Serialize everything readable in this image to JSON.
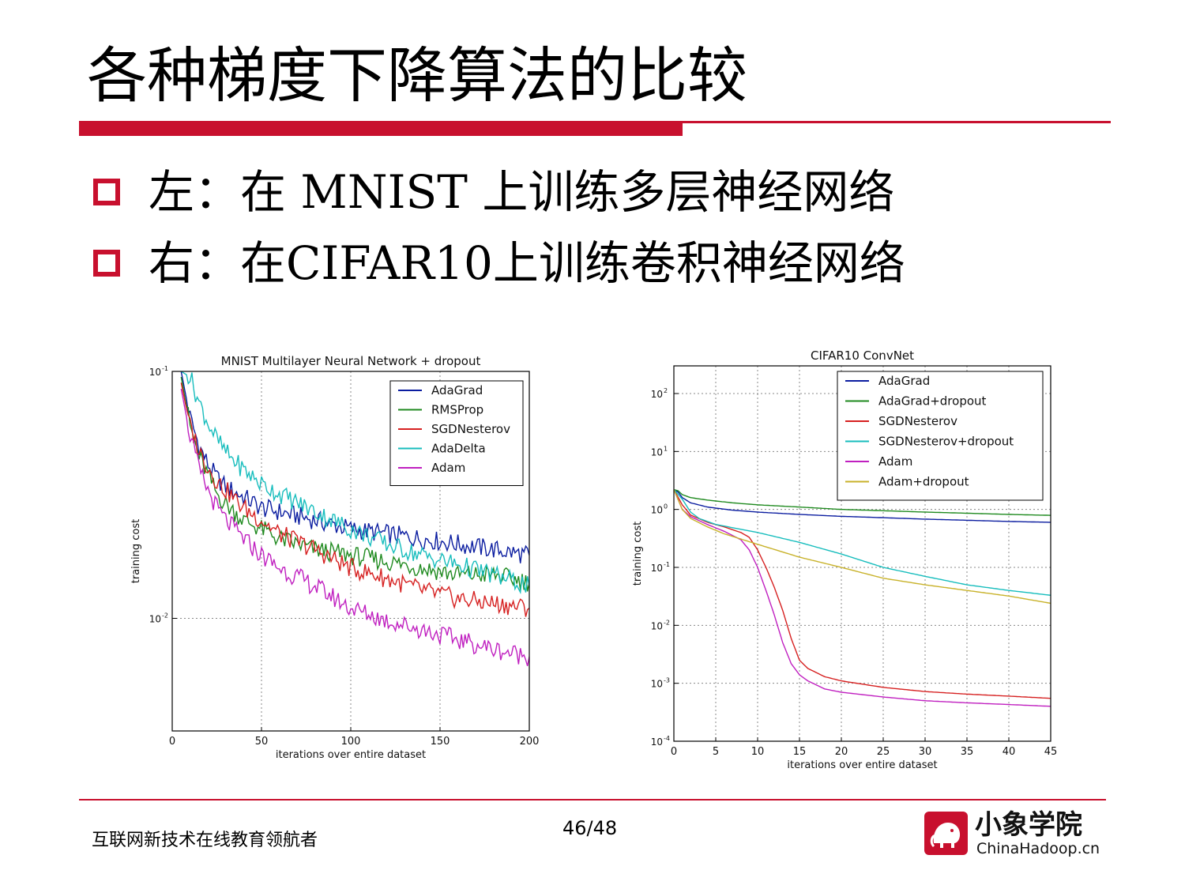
{
  "slide": {
    "title": "各种梯度下降算法的比较",
    "bullets": [
      "左：在 MNIST 上训练多层神经网络",
      "右：在CIFAR10上训练卷积神经网络"
    ],
    "footer_text": "互联网新技术在线教育领航者",
    "page_number": "46/48",
    "logo_cn": "小象学院",
    "logo_en": "ChinaHadoop.cn",
    "accent_color": "#c8102e"
  },
  "chart_data": [
    {
      "type": "line",
      "title": "MNIST Multilayer Neural Network + dropout",
      "xlabel": "iterations over entire dataset",
      "ylabel": "training cost",
      "xlim": [
        0,
        200
      ],
      "ylim": [
        0.0035,
        0.1
      ],
      "yscale": "log",
      "grid": true,
      "legend_position": "top-right",
      "x_ticks": [
        {
          "value": 0,
          "label": "0"
        },
        {
          "value": 50,
          "label": "50"
        },
        {
          "value": 100,
          "label": "100"
        },
        {
          "value": 150,
          "label": "150"
        },
        {
          "value": 200,
          "label": "200"
        }
      ],
      "y_ticks": [
        {
          "value": 0.1,
          "label": "10",
          "exp": "-1"
        },
        {
          "value": 0.01,
          "label": "10",
          "exp": "-2"
        }
      ],
      "series": [
        {
          "name": "AdaGrad",
          "color": "#0b1da0",
          "x": [
            5,
            10,
            15,
            20,
            25,
            30,
            40,
            50,
            60,
            80,
            100,
            120,
            140,
            160,
            180,
            200
          ],
          "y": [
            0.1,
            0.065,
            0.05,
            0.042,
            0.037,
            0.034,
            0.031,
            0.028,
            0.027,
            0.025,
            0.023,
            0.022,
            0.021,
            0.02,
            0.019,
            0.018
          ]
        },
        {
          "name": "RMSProp",
          "color": "#1f8a1f",
          "x": [
            5,
            10,
            15,
            20,
            25,
            30,
            40,
            50,
            60,
            80,
            100,
            120,
            140,
            160,
            180,
            200
          ],
          "y": [
            0.095,
            0.06,
            0.045,
            0.038,
            0.032,
            0.029,
            0.025,
            0.023,
            0.021,
            0.019,
            0.018,
            0.017,
            0.016,
            0.015,
            0.015,
            0.014
          ]
        },
        {
          "name": "SGDNesterov",
          "color": "#d62020",
          "x": [
            5,
            10,
            15,
            20,
            25,
            30,
            40,
            50,
            60,
            80,
            100,
            120,
            140,
            160,
            180,
            200
          ],
          "y": [
            0.09,
            0.06,
            0.048,
            0.041,
            0.036,
            0.033,
            0.028,
            0.025,
            0.022,
            0.019,
            0.016,
            0.0145,
            0.013,
            0.012,
            0.0115,
            0.011
          ]
        },
        {
          "name": "AdaDelta",
          "color": "#17bdbd",
          "x": [
            5,
            10,
            15,
            20,
            25,
            30,
            40,
            50,
            60,
            80,
            100,
            120,
            140,
            160,
            180,
            200
          ],
          "y": [
            0.1,
            0.095,
            0.075,
            0.062,
            0.053,
            0.047,
            0.04,
            0.035,
            0.032,
            0.027,
            0.023,
            0.02,
            0.018,
            0.0165,
            0.015,
            0.0135
          ]
        },
        {
          "name": "Adam",
          "color": "#c020c0",
          "x": [
            5,
            10,
            15,
            20,
            25,
            30,
            40,
            50,
            60,
            80,
            100,
            120,
            140,
            160,
            180,
            200
          ],
          "y": [
            0.085,
            0.055,
            0.04,
            0.033,
            0.028,
            0.025,
            0.021,
            0.018,
            0.016,
            0.0135,
            0.011,
            0.0098,
            0.009,
            0.0082,
            0.0075,
            0.007
          ]
        }
      ]
    },
    {
      "type": "line",
      "title": "CIFAR10 ConvNet",
      "xlabel": "iterations over entire dataset",
      "ylabel": "training cost",
      "xlim": [
        0,
        45
      ],
      "ylim": [
        0.0001,
        300
      ],
      "yscale": "log",
      "grid": true,
      "legend_position": "top-right",
      "x_ticks": [
        {
          "value": 0,
          "label": "0"
        },
        {
          "value": 5,
          "label": "5"
        },
        {
          "value": 10,
          "label": "10"
        },
        {
          "value": 15,
          "label": "15"
        },
        {
          "value": 20,
          "label": "20"
        },
        {
          "value": 25,
          "label": "25"
        },
        {
          "value": 30,
          "label": "30"
        },
        {
          "value": 35,
          "label": "35"
        },
        {
          "value": 40,
          "label": "40"
        },
        {
          "value": 45,
          "label": "45"
        }
      ],
      "y_ticks": [
        {
          "value": 100,
          "label": "10",
          "exp": "2"
        },
        {
          "value": 10,
          "label": "10",
          "exp": "1"
        },
        {
          "value": 1,
          "label": "10",
          "exp": "0"
        },
        {
          "value": 0.1,
          "label": "10",
          "exp": "-1"
        },
        {
          "value": 0.01,
          "label": "10",
          "exp": "-2"
        },
        {
          "value": 0.001,
          "label": "10",
          "exp": "-3"
        },
        {
          "value": 0.0001,
          "label": "10",
          "exp": "-4"
        }
      ],
      "series": [
        {
          "name": "AdaGrad",
          "color": "#0b1da0",
          "x": [
            0,
            0.5,
            1,
            2,
            4,
            7,
            10,
            15,
            20,
            25,
            30,
            35,
            40,
            45
          ],
          "y": [
            2.2,
            2.0,
            1.6,
            1.3,
            1.1,
            0.97,
            0.9,
            0.82,
            0.76,
            0.72,
            0.68,
            0.65,
            0.62,
            0.6
          ]
        },
        {
          "name": "AdaGrad+dropout",
          "color": "#1f8a1f",
          "x": [
            0,
            0.5,
            1,
            2,
            4,
            7,
            10,
            15,
            20,
            25,
            30,
            35,
            40,
            45
          ],
          "y": [
            2.2,
            2.1,
            1.8,
            1.6,
            1.45,
            1.3,
            1.2,
            1.1,
            1.0,
            0.95,
            0.9,
            0.86,
            0.82,
            0.79
          ]
        },
        {
          "name": "SGDNesterov",
          "color": "#d62020",
          "x": [
            0,
            1,
            2,
            4,
            6,
            8,
            9,
            10,
            11,
            12,
            13,
            14,
            15,
            16,
            18,
            20,
            25,
            30,
            35,
            40,
            45
          ],
          "y": [
            2.2,
            1.2,
            0.8,
            0.6,
            0.5,
            0.4,
            0.33,
            0.2,
            0.1,
            0.045,
            0.018,
            0.006,
            0.0025,
            0.0018,
            0.0013,
            0.0011,
            0.00085,
            0.00072,
            0.00065,
            0.0006,
            0.00055
          ]
        },
        {
          "name": "SGDNesterov+dropout",
          "color": "#17bdbd",
          "x": [
            0,
            1,
            2,
            3,
            5,
            10,
            15,
            20,
            25,
            30,
            35,
            40,
            45
          ],
          "y": [
            2.2,
            1.5,
            0.9,
            0.7,
            0.55,
            0.4,
            0.27,
            0.17,
            0.1,
            0.07,
            0.05,
            0.04,
            0.033
          ]
        },
        {
          "name": "Adam",
          "color": "#c020c0",
          "x": [
            0,
            1,
            2,
            4,
            6,
            8,
            9,
            10,
            11,
            12,
            13,
            14,
            15,
            16,
            18,
            20,
            25,
            30,
            35,
            40,
            45
          ],
          "y": [
            2.2,
            1.0,
            0.75,
            0.55,
            0.42,
            0.3,
            0.2,
            0.1,
            0.04,
            0.015,
            0.005,
            0.0022,
            0.0014,
            0.0011,
            0.0008,
            0.0007,
            0.00058,
            0.0005,
            0.00046,
            0.00043,
            0.0004
          ]
        },
        {
          "name": "Adam+dropout",
          "color": "#c8b22a",
          "x": [
            0,
            1,
            2,
            4,
            6,
            10,
            15,
            20,
            25,
            30,
            35,
            40,
            45
          ],
          "y": [
            2.2,
            1.0,
            0.7,
            0.5,
            0.38,
            0.25,
            0.15,
            0.1,
            0.065,
            0.05,
            0.04,
            0.032,
            0.024
          ]
        }
      ]
    }
  ]
}
